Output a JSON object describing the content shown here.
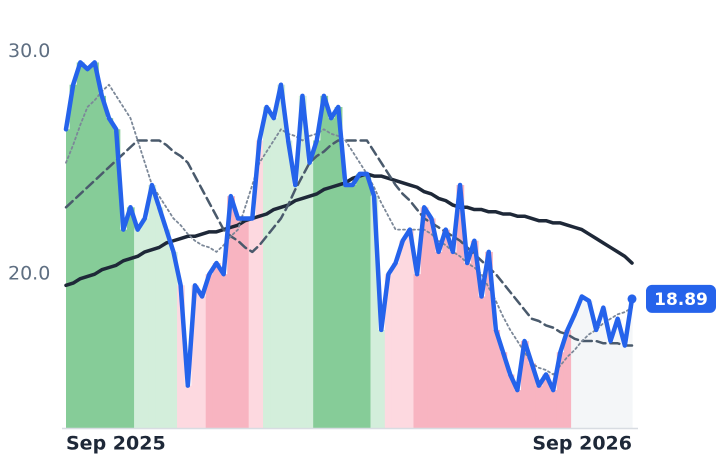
{
  "chart_data": {
    "type": "line",
    "categories": [
      "Sep 2025",
      null,
      null,
      null,
      null,
      null,
      null,
      null,
      null,
      null,
      null,
      null,
      null,
      null,
      null,
      null,
      null,
      null,
      null,
      null,
      null,
      null,
      null,
      null,
      null,
      null,
      null,
      null,
      null,
      null,
      null,
      null,
      null,
      null,
      null,
      null,
      null,
      null,
      null,
      null,
      null,
      null,
      null,
      null,
      null,
      null,
      null,
      null,
      null,
      null,
      null,
      null,
      null,
      null,
      null,
      null,
      null,
      null,
      null,
      null,
      null,
      null,
      null,
      null,
      null,
      null,
      null,
      null,
      null,
      null,
      null,
      null,
      null,
      null,
      null,
      null,
      null,
      null,
      null,
      "Sep 2026"
    ],
    "ylim": [
      13.1,
      32.3
    ],
    "yticks": [
      {
        "value": 20,
        "label": "20.0"
      },
      {
        "value": 30,
        "label": "30.0"
      }
    ],
    "grid": false,
    "shades": [
      "#86cc98",
      "#86cc98",
      "#86cc98",
      "#86cc98",
      "#86cc98",
      "#86cc98",
      "#86cc98",
      "#86cc98",
      "#86cc98",
      "#86cc98",
      "#d3eedb",
      "#d3eedb",
      "#d3eedb",
      "#d3eedb",
      "#d3eedb",
      "#d3eedb",
      "#fdd9e0",
      "#fdd9e0",
      "#fdd9e0",
      "#fdd9e0",
      "#f8b4c1",
      "#f8b4c1",
      "#f8b4c1",
      "#f8b4c1",
      "#f8b4c1",
      "#f8b4c1",
      "#fdd9e0",
      "#fdd9e0",
      "#d3eedb",
      "#d3eedb",
      "#d3eedb",
      "#d3eedb",
      "#d3eedb",
      "#d3eedb",
      "#d3eedb",
      "#86cc98",
      "#86cc98",
      "#86cc98",
      "#86cc98",
      "#86cc98",
      "#86cc98",
      "#86cc98",
      "#86cc98",
      "#d3eedb",
      "#d3eedb",
      "#fdd9e0",
      "#fdd9e0",
      "#fdd9e0",
      "#fdd9e0",
      "#f8b4c1",
      "#f8b4c1",
      "#f8b4c1",
      "#f8b4c1",
      "#f8b4c1",
      "#f8b4c1",
      "#f8b4c1",
      "#f8b4c1",
      "#f8b4c1",
      "#f8b4c1",
      "#f8b4c1",
      "#f8b4c1",
      "#f8b4c1",
      "#f8b4c1",
      "#f8b4c1",
      "#f8b4c1",
      "#f8b4c1",
      "#f8b4c1",
      "#f8b4c1",
      "#f8b4c1",
      "#f8b4c1",
      "#f8b4c1",
      "#f4f6f8",
      "#f4f6f8",
      "#f4f6f8",
      "#f4f6f8",
      "#f4f6f8",
      "#f4f6f8",
      "#f4f6f8",
      "#f4f6f8",
      "#f4f6f8"
    ],
    "series": [
      {
        "color": "#1e2838",
        "style": "solid",
        "width": 3.5,
        "values": [
          19.5,
          19.6,
          19.8,
          19.9,
          20.0,
          20.2,
          20.3,
          20.4,
          20.6,
          20.7,
          20.8,
          21.0,
          21.1,
          21.2,
          21.4,
          21.5,
          21.6,
          21.7,
          21.7,
          21.8,
          21.9,
          21.9,
          22.0,
          22.1,
          22.2,
          22.4,
          22.5,
          22.6,
          22.7,
          22.9,
          23.0,
          23.1,
          23.3,
          23.4,
          23.5,
          23.6,
          23.8,
          23.9,
          24.0,
          24.1,
          24.3,
          24.4,
          24.5,
          24.4,
          24.4,
          24.3,
          24.2,
          24.1,
          24.0,
          23.9,
          23.7,
          23.6,
          23.4,
          23.3,
          23.1,
          23.0,
          23.0,
          22.9,
          22.9,
          22.8,
          22.8,
          22.7,
          22.7,
          22.6,
          22.6,
          22.5,
          22.4,
          22.4,
          22.3,
          22.3,
          22.2,
          22.1,
          22.0,
          21.8,
          21.6,
          21.4,
          21.2,
          21.0,
          20.8,
          20.5
        ]
      },
      {
        "color": "#4a5a6c",
        "style": "dashed",
        "width": 2.5,
        "values": [
          23.0,
          23.3,
          23.6,
          23.9,
          24.2,
          24.5,
          24.8,
          25.1,
          25.4,
          25.7,
          26.0,
          26.0,
          26.0,
          26.0,
          25.8,
          25.5,
          25.3,
          25.0,
          24.4,
          23.8,
          23.2,
          22.6,
          22.0,
          21.7,
          21.5,
          21.2,
          21.0,
          21.3,
          21.7,
          22.1,
          22.5,
          23.1,
          23.8,
          24.4,
          25.0,
          25.3,
          25.5,
          25.8,
          26.0,
          26.0,
          26.0,
          26.0,
          26.0,
          25.5,
          25.0,
          24.5,
          24.0,
          23.6,
          23.3,
          22.9,
          22.5,
          22.3,
          22.1,
          21.9,
          21.7,
          21.5,
          21.2,
          20.9,
          20.6,
          20.3,
          20.0,
          19.6,
          19.2,
          18.8,
          18.4,
          18.0,
          17.9,
          17.7,
          17.6,
          17.4,
          17.3,
          17.1,
          17.0,
          17.0,
          17.0,
          16.9,
          16.9,
          16.9,
          16.8,
          16.8
        ]
      },
      {
        "color": "#7c8898",
        "style": "dotted",
        "width": 1.8,
        "values": [
          25.0,
          25.8,
          26.7,
          27.5,
          27.8,
          28.2,
          28.5,
          28.0,
          27.5,
          27.0,
          26.0,
          25.0,
          24.0,
          23.5,
          23.0,
          22.5,
          22.2,
          21.8,
          21.5,
          21.3,
          21.2,
          21.0,
          21.3,
          21.7,
          22.0,
          23.0,
          24.0,
          25.0,
          25.5,
          26.0,
          26.5,
          26.3,
          26.2,
          26.0,
          26.2,
          26.3,
          26.5,
          26.3,
          26.2,
          26.0,
          25.5,
          25.0,
          24.5,
          23.9,
          23.2,
          22.6,
          22.0,
          22.0,
          22.0,
          22.0,
          22.0,
          21.8,
          21.5,
          21.3,
          21.0,
          20.8,
          20.5,
          20.3,
          20.0,
          19.4,
          18.8,
          18.1,
          17.5,
          17.0,
          16.5,
          16.0,
          15.8,
          15.7,
          15.5,
          15.9,
          16.3,
          16.6,
          17.0,
          17.3,
          17.5,
          17.8,
          18.0,
          18.2,
          18.3,
          18.5
        ]
      },
      {
        "color": "#2563eb",
        "style": "solid",
        "width": 4.5,
        "main": true,
        "values": [
          26.5,
          28.5,
          29.5,
          29.2,
          29.5,
          28,
          27,
          26.5,
          22,
          23,
          22,
          22.5,
          24,
          23,
          22,
          21,
          19.5,
          15,
          19.5,
          19,
          20,
          20.5,
          20,
          23.5,
          22.5,
          22.5,
          22.5,
          26,
          27.5,
          27,
          28.5,
          26,
          24,
          28,
          25,
          26,
          28,
          27,
          27.5,
          24,
          24,
          24.5,
          24.5,
          23.5,
          17.5,
          20,
          20.5,
          21.5,
          22,
          20,
          23,
          22.5,
          21,
          22,
          21,
          24,
          20.5,
          21.5,
          19,
          21,
          17.5,
          16.5,
          15.5,
          14.8,
          17,
          16,
          15,
          15.5,
          14.8,
          16.5,
          17.5,
          18.2,
          19,
          18.8,
          17.5,
          18.5,
          17,
          18,
          16.8,
          18.89
        ],
        "value_labels": [
          null,
          null,
          null,
          null,
          null,
          null,
          null,
          null,
          null,
          null,
          null,
          null,
          null,
          null,
          null,
          null,
          null,
          null,
          null,
          null,
          null,
          null,
          null,
          null,
          null,
          null,
          null,
          null,
          null,
          null,
          null,
          null,
          null,
          null,
          null,
          null,
          null,
          null,
          null,
          null,
          null,
          null,
          null,
          null,
          null,
          null,
          null,
          null,
          null,
          null,
          null,
          null,
          null,
          null,
          null,
          null,
          null,
          null,
          null,
          null,
          null,
          null,
          null,
          null,
          null,
          null,
          null,
          null,
          null,
          null,
          null,
          null,
          null,
          null,
          null,
          null,
          null,
          null,
          null,
          "18.89"
        ]
      }
    ]
  }
}
